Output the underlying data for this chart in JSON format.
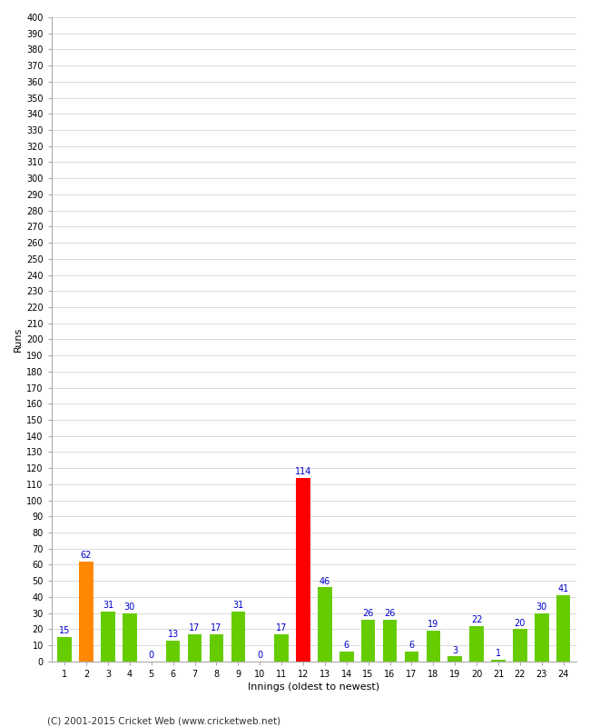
{
  "innings": [
    1,
    2,
    3,
    4,
    5,
    6,
    7,
    8,
    9,
    10,
    11,
    12,
    13,
    14,
    15,
    16,
    17,
    18,
    19,
    20,
    21,
    22,
    23,
    24
  ],
  "values": [
    15,
    62,
    31,
    30,
    0,
    13,
    17,
    17,
    31,
    0,
    17,
    114,
    46,
    6,
    26,
    26,
    6,
    19,
    3,
    22,
    1,
    20,
    30,
    41
  ],
  "colors": [
    "#66cc00",
    "#ff8800",
    "#66cc00",
    "#66cc00",
    "#66cc00",
    "#66cc00",
    "#66cc00",
    "#66cc00",
    "#66cc00",
    "#66cc00",
    "#66cc00",
    "#ff0000",
    "#66cc00",
    "#66cc00",
    "#66cc00",
    "#66cc00",
    "#66cc00",
    "#66cc00",
    "#66cc00",
    "#66cc00",
    "#66cc00",
    "#66cc00",
    "#66cc00",
    "#66cc00"
  ],
  "xlabel": "Innings (oldest to newest)",
  "ylabel": "Runs",
  "ylim": [
    0,
    400
  ],
  "ytick_step": 10,
  "background_color": "#ffffff",
  "grid_color": "#cccccc",
  "label_color": "#0000cc",
  "footer": "(C) 2001-2015 Cricket Web (www.cricketweb.net)",
  "bar_width": 0.65
}
